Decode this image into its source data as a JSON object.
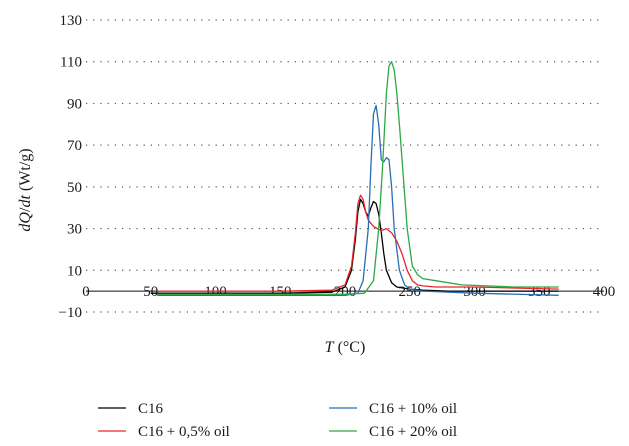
{
  "chart_data": {
    "type": "line",
    "xlabel": "T (°C)",
    "ylabel": "dQ/dt (Wt/g)",
    "xlim": [
      0,
      400
    ],
    "ylim": [
      -10,
      130
    ],
    "x_ticks": [
      "0",
      "50",
      "100",
      "150",
      "200",
      "250",
      "300",
      "350",
      "400"
    ],
    "y_ticks": [
      "−10",
      "10",
      "30",
      "50",
      "70",
      "90",
      "110",
      "130"
    ],
    "grid": "dotted horizontal",
    "legend_position": "bottom",
    "series": [
      {
        "name": "C16",
        "color": "#000000",
        "x": [
          50,
          100,
          150,
          190,
          200,
          205,
          208,
          210,
          212,
          214,
          216,
          218,
          220,
          222,
          224,
          226,
          228,
          230,
          232,
          236,
          240,
          250,
          260,
          280,
          300,
          330,
          365
        ],
        "y": [
          -1,
          -1,
          -1,
          -0.5,
          2,
          10,
          25,
          38,
          44,
          42,
          38,
          36,
          40,
          43,
          42,
          37,
          28,
          18,
          10,
          4,
          2,
          1,
          0.5,
          0,
          0,
          0,
          0
        ]
      },
      {
        "name": "C16 + 0,5% oil",
        "color": "#e8262a",
        "x": [
          55,
          100,
          150,
          190,
          200,
          205,
          208,
          210,
          212,
          214,
          216,
          218,
          222,
          228,
          232,
          236,
          240,
          244,
          248,
          252,
          256,
          260,
          270,
          300,
          330,
          365
        ],
        "y": [
          0,
          0,
          0,
          0.5,
          3,
          12,
          28,
          42,
          46,
          44,
          38,
          34,
          31,
          29,
          30,
          28,
          24,
          18,
          10,
          5,
          3,
          2.5,
          2,
          2,
          1.5,
          1
        ]
      },
      {
        "name": "C16 + 10% oil",
        "color": "#2a6db5",
        "x": [
          55,
          100,
          150,
          200,
          210,
          214,
          218,
          220,
          222,
          224,
          226,
          228,
          230,
          232,
          234,
          236,
          238,
          242,
          246,
          250,
          260,
          300,
          365
        ],
        "y": [
          -2,
          -2,
          -2,
          -2,
          -1,
          5,
          30,
          60,
          85,
          89,
          80,
          63,
          62,
          64,
          63,
          50,
          30,
          10,
          3,
          1,
          0,
          -1,
          -2
        ]
      },
      {
        "name": "C16 + 20% oil",
        "color": "#2ca845",
        "x": [
          55,
          100,
          150,
          200,
          215,
          222,
          226,
          229,
          232,
          234,
          236,
          238,
          240,
          242,
          245,
          248,
          252,
          256,
          260,
          270,
          290,
          310,
          330,
          365
        ],
        "y": [
          -1.5,
          -1.5,
          -1.5,
          -1.5,
          -1,
          5,
          30,
          60,
          95,
          108,
          110,
          106,
          95,
          80,
          55,
          30,
          12,
          8,
          6,
          5,
          3,
          2.5,
          2,
          2
        ]
      }
    ]
  }
}
